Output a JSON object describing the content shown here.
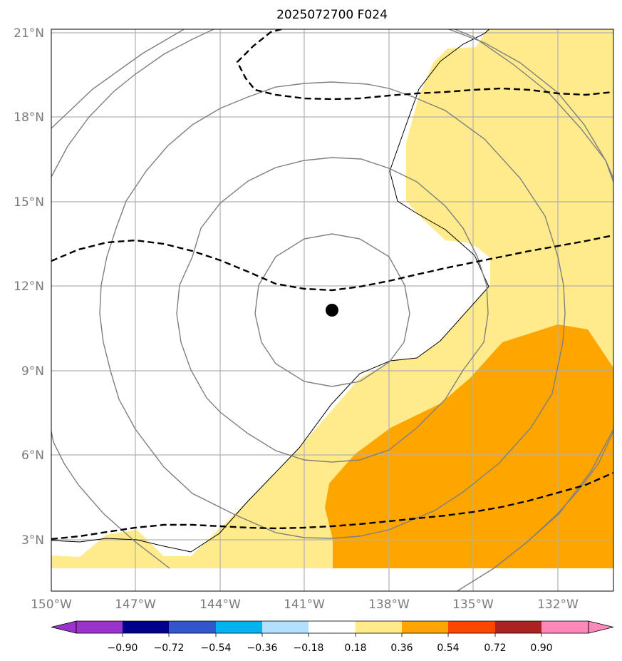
{
  "title": "2025072700 F024",
  "latitude_labels": [
    "3°N",
    "6°N",
    "9°N",
    "12°N",
    "15°N",
    "18°N",
    "21°N"
  ],
  "longitude_labels": [
    "150°W",
    "147°W",
    "144°W",
    "141°W",
    "138°W",
    "135°W",
    "132°W"
  ],
  "colorbar": {
    "tick_labels": [
      "−0.90",
      "−0.72",
      "−0.54",
      "−0.36",
      "−0.18",
      "0.18",
      "0.36",
      "0.54",
      "0.72",
      "0.90"
    ],
    "colors": [
      "#9933cc",
      "#00008b",
      "#3355cc",
      "#00b4f0",
      "#b3e0ff",
      "#ffffff",
      "#ffeb8c",
      "#ffa500",
      "#ff4500",
      "#aa2222",
      "#ff88bb"
    ]
  },
  "fill_colors": {
    "light_yellow": "#ffeb8c",
    "orange": "#ffa500"
  },
  "storm_center": {
    "lat": 11.1,
    "lon": "139.9°W"
  },
  "extent": {
    "lon": [
      "150°W",
      "130°W"
    ],
    "lat": [
      "1°N",
      "21°N"
    ]
  }
}
